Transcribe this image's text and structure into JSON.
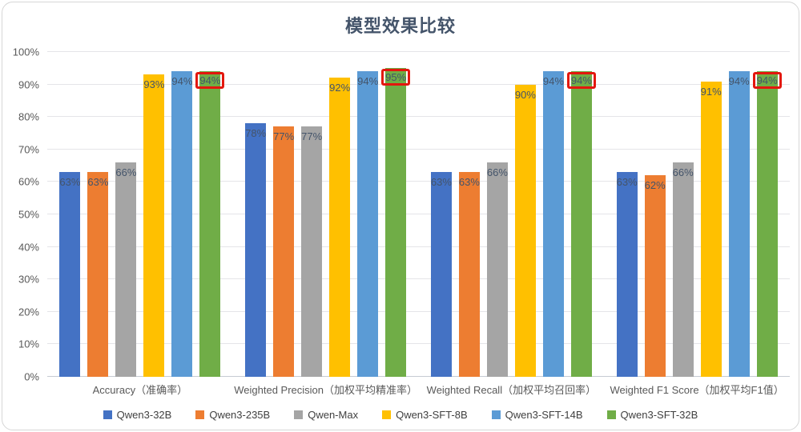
{
  "chart_data": {
    "type": "bar",
    "title": "模型效果比较",
    "categories": [
      "Accuracy（准确率）",
      "Weighted Precision（加权平均精准率）",
      "Weighted Recall（加权平均召回率）",
      "Weighted F1 Score（加权平均F1值）"
    ],
    "series": [
      {
        "name": "Qwen3-32B",
        "color": "#4472C4",
        "values": [
          63,
          78,
          63,
          63
        ]
      },
      {
        "name": "Qwen3-235B",
        "color": "#ED7D31",
        "values": [
          63,
          77,
          63,
          62
        ]
      },
      {
        "name": "Qwen-Max",
        "color": "#A5A5A5",
        "values": [
          66,
          77,
          66,
          66
        ]
      },
      {
        "name": "Qwen3-SFT-8B",
        "color": "#FFC000",
        "values": [
          93,
          92,
          90,
          91
        ]
      },
      {
        "name": "Qwen3-SFT-14B",
        "color": "#5B9BD5",
        "values": [
          94,
          94,
          94,
          94
        ]
      },
      {
        "name": "Qwen3-SFT-32B",
        "color": "#70AD47",
        "values": [
          94,
          95,
          94,
          94
        ]
      }
    ],
    "y_ticks": [
      "0%",
      "10%",
      "20%",
      "30%",
      "40%",
      "50%",
      "60%",
      "70%",
      "80%",
      "90%",
      "100%"
    ],
    "ylim": [
      0,
      100
    ],
    "grid": true,
    "legend_position": "bottom",
    "data_label_suffix": "%",
    "highlight": {
      "series": "Qwen3-SFT-32B",
      "style": "red-box",
      "color": "#E3170D"
    }
  }
}
